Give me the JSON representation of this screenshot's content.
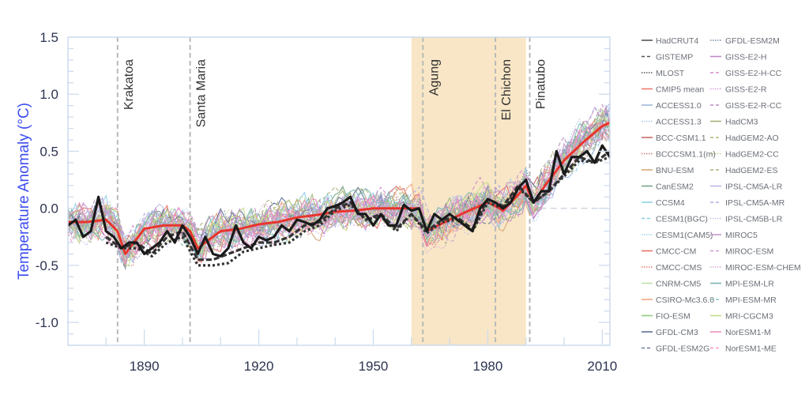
{
  "chart_data": {
    "type": "line",
    "title": "",
    "xlabel": "",
    "ylabel": "Temperature Anomaly (°C)",
    "xlim": [
      1870,
      2012
    ],
    "ylim": [
      -1.2,
      1.5
    ],
    "xticks": [
      1890,
      1920,
      1950,
      1980,
      2010
    ],
    "yticks": [
      -1.0,
      -0.5,
      0.0,
      0.5,
      1.0,
      1.5
    ],
    "ytick_labels": [
      "-1.0",
      "-0.5",
      "0.0",
      "0.5",
      "1.0",
      "1.5"
    ],
    "grid": false,
    "legend_placement": "right",
    "shaded_period": {
      "start": 1960,
      "end": 1990,
      "color": "#f8e6c6"
    },
    "events": [
      {
        "label": "Krakatoa",
        "year": 1883
      },
      {
        "label": "Santa Maria",
        "year": 1902
      },
      {
        "label": "Agung",
        "year": 1963
      },
      {
        "label": "El Chichon",
        "year": 1982
      },
      {
        "label": "Pinatubo",
        "year": 1991
      }
    ],
    "observations": [
      {
        "name": "HadCRUT4",
        "color": "#1a1a1a",
        "dash": "solid",
        "x": [
          1870,
          1872,
          1874,
          1876,
          1878,
          1880,
          1882,
          1884,
          1886,
          1888,
          1890,
          1892,
          1894,
          1896,
          1898,
          1900,
          1902,
          1904,
          1906,
          1908,
          1910,
          1912,
          1914,
          1916,
          1918,
          1920,
          1922,
          1924,
          1926,
          1928,
          1930,
          1932,
          1934,
          1936,
          1938,
          1940,
          1942,
          1944,
          1946,
          1948,
          1950,
          1952,
          1954,
          1956,
          1958,
          1960,
          1962,
          1964,
          1966,
          1968,
          1970,
          1972,
          1974,
          1976,
          1978,
          1980,
          1982,
          1984,
          1986,
          1988,
          1990,
          1992,
          1994,
          1996,
          1998,
          2000,
          2002,
          2004,
          2006,
          2008,
          2010,
          2012
        ],
        "y": [
          -0.15,
          -0.1,
          -0.25,
          -0.2,
          0.1,
          -0.2,
          -0.25,
          -0.35,
          -0.3,
          -0.3,
          -0.4,
          -0.35,
          -0.3,
          -0.2,
          -0.3,
          -0.15,
          -0.25,
          -0.4,
          -0.25,
          -0.4,
          -0.42,
          -0.35,
          -0.15,
          -0.3,
          -0.35,
          -0.25,
          -0.28,
          -0.25,
          -0.15,
          -0.2,
          -0.1,
          -0.12,
          -0.15,
          -0.1,
          0.0,
          0.02,
          0.05,
          0.1,
          -0.05,
          -0.05,
          -0.15,
          -0.05,
          -0.15,
          -0.15,
          0.03,
          -0.02,
          0.0,
          -0.2,
          -0.05,
          -0.1,
          -0.05,
          -0.1,
          -0.15,
          -0.2,
          0.0,
          0.08,
          0.05,
          0.0,
          0.05,
          0.18,
          0.25,
          0.05,
          0.15,
          0.15,
          0.5,
          0.3,
          0.45,
          0.45,
          0.5,
          0.4,
          0.55,
          0.45
        ]
      },
      {
        "name": "GISTEMP",
        "color": "#333333",
        "dash": "dashed",
        "x": [
          1880,
          1884,
          1888,
          1892,
          1896,
          1900,
          1904,
          1908,
          1912,
          1916,
          1920,
          1924,
          1928,
          1932,
          1936,
          1940,
          1944,
          1948,
          1952,
          1956,
          1960,
          1964,
          1968,
          1972,
          1976,
          1980,
          1984,
          1988,
          1992,
          1996,
          2000,
          2004,
          2008,
          2012
        ],
        "y": [
          -0.25,
          -0.35,
          -0.3,
          -0.4,
          -0.25,
          -0.2,
          -0.45,
          -0.45,
          -0.4,
          -0.35,
          -0.3,
          -0.3,
          -0.25,
          -0.15,
          -0.12,
          0.0,
          0.05,
          -0.1,
          -0.05,
          -0.18,
          -0.05,
          -0.2,
          -0.1,
          -0.08,
          -0.18,
          0.08,
          0.02,
          0.2,
          0.05,
          0.15,
          0.3,
          0.45,
          0.4,
          0.5
        ]
      },
      {
        "name": "MLOST",
        "color": "#333333",
        "dash": "dotted",
        "x": [
          1880,
          1884,
          1888,
          1892,
          1896,
          1900,
          1904,
          1908,
          1912,
          1916,
          1920,
          1924,
          1928,
          1932,
          1936,
          1940,
          1944,
          1948,
          1952,
          1956,
          1960,
          1964,
          1968,
          1972,
          1976,
          1980,
          1984,
          1988,
          1992,
          1996,
          2000,
          2004,
          2008,
          2012
        ],
        "y": [
          -0.3,
          -0.35,
          -0.35,
          -0.42,
          -0.3,
          -0.25,
          -0.5,
          -0.5,
          -0.48,
          -0.38,
          -0.35,
          -0.32,
          -0.3,
          -0.2,
          -0.15,
          -0.02,
          0.03,
          -0.1,
          -0.07,
          -0.2,
          -0.05,
          -0.22,
          -0.12,
          -0.1,
          -0.2,
          0.05,
          0.0,
          0.18,
          0.05,
          0.15,
          0.28,
          0.42,
          0.4,
          0.45
        ]
      },
      {
        "name": "CMIP5 mean",
        "color": "#e8352e",
        "dash": "solid",
        "x": [
          1870,
          1875,
          1880,
          1883,
          1885,
          1890,
          1895,
          1900,
          1902,
          1904,
          1910,
          1915,
          1920,
          1925,
          1930,
          1935,
          1940,
          1945,
          1950,
          1955,
          1960,
          1962,
          1964,
          1967,
          1970,
          1975,
          1980,
          1982,
          1984,
          1988,
          1990,
          1992,
          1995,
          2000,
          2005,
          2010,
          2012
        ],
        "y": [
          -0.12,
          -0.12,
          -0.1,
          -0.2,
          -0.4,
          -0.18,
          -0.15,
          -0.15,
          -0.2,
          -0.35,
          -0.2,
          -0.18,
          -0.14,
          -0.12,
          -0.08,
          -0.06,
          -0.03,
          -0.02,
          0.0,
          0.0,
          0.0,
          0.0,
          -0.2,
          -0.15,
          -0.1,
          -0.02,
          0.05,
          0.02,
          -0.02,
          0.12,
          0.2,
          0.05,
          0.2,
          0.42,
          0.58,
          0.72,
          0.75
        ]
      }
    ],
    "legend": [
      {
        "name": "HadCRUT4",
        "color": "#555555",
        "dash": "solid"
      },
      {
        "name": "GISTEMP",
        "color": "#555555",
        "dash": "dashed"
      },
      {
        "name": "MLOST",
        "color": "#555555",
        "dash": "dotted"
      },
      {
        "name": "CMIP5 mean",
        "color": "#f07a72",
        "dash": "solid"
      },
      {
        "name": "ACCESS1.0",
        "color": "#9fb8dc",
        "dash": "solid"
      },
      {
        "name": "ACCESS1.3",
        "color": "#a9c4e6",
        "dash": "dotted"
      },
      {
        "name": "BCC-CSM1.1",
        "color": "#c96a6a",
        "dash": "solid"
      },
      {
        "name": "BCCCSM1.1(m)",
        "color": "#d27a7a",
        "dash": "dotted"
      },
      {
        "name": "BNU-ESM",
        "color": "#d9a878",
        "dash": "solid"
      },
      {
        "name": "CanESM2",
        "color": "#7ba48a",
        "dash": "solid"
      },
      {
        "name": "CCSM4",
        "color": "#8fd0e6",
        "dash": "solid"
      },
      {
        "name": "CESM1(BGC)",
        "color": "#8ccde3",
        "dash": "dashed"
      },
      {
        "name": "CESM1(CAM5)",
        "color": "#9ad6ea",
        "dash": "dotted"
      },
      {
        "name": "CMCC-CM",
        "color": "#ee6f66",
        "dash": "solid"
      },
      {
        "name": "CMCC-CMS",
        "color": "#ee7c73",
        "dash": "dotted"
      },
      {
        "name": "CNRM-CM5",
        "color": "#bfe3a8",
        "dash": "solid"
      },
      {
        "name": "CSIRO-Mc3.6.0",
        "color": "#f3a77e",
        "dash": "solid"
      },
      {
        "name": "FIO-ESM",
        "color": "#8fcb80",
        "dash": "solid"
      },
      {
        "name": "GFDL-CM3",
        "color": "#5f6f94",
        "dash": "solid"
      },
      {
        "name": "GFDL-ESM2G",
        "color": "#6a7a9c",
        "dash": "dashed"
      },
      {
        "name": "GFDL-ESM2M",
        "color": "#7688ac",
        "dash": "dotted"
      },
      {
        "name": "GISS-E2-H",
        "color": "#c08ac8",
        "dash": "solid"
      },
      {
        "name": "GISS-E2-H-CC",
        "color": "#cf8ccd",
        "dash": "dashed"
      },
      {
        "name": "GISS-E2-R",
        "color": "#d499d6",
        "dash": "dotted"
      },
      {
        "name": "GISS-E2-R-CC",
        "color": "#b98cc0",
        "dash": "dashed"
      },
      {
        "name": "HadCM3",
        "color": "#a5b57a",
        "dash": "solid"
      },
      {
        "name": "HadGEM2-AO",
        "color": "#a9bc74",
        "dash": "dashed"
      },
      {
        "name": "HadGEM2-CC",
        "color": "#c2d48a",
        "dash": "dotted"
      },
      {
        "name": "HadGEM2-ES",
        "color": "#aab37e",
        "dash": "dashed"
      },
      {
        "name": "IPSL-CM5A-LR",
        "color": "#bdb8e6",
        "dash": "solid"
      },
      {
        "name": "IPSL-CM5A-MR",
        "color": "#b3aee0",
        "dash": "dashed"
      },
      {
        "name": "IPSL-CM5B-LR",
        "color": "#c5c0ea",
        "dash": "dotted"
      },
      {
        "name": "MIROC5",
        "color": "#c797cc",
        "dash": "solid"
      },
      {
        "name": "MIROC-ESM",
        "color": "#cf9ad3",
        "dash": "dashed"
      },
      {
        "name": "MIROC-ESM-CHEM",
        "color": "#d6a8d9",
        "dash": "dotted"
      },
      {
        "name": "MPI-ESM-LR",
        "color": "#7fb5b5",
        "dash": "solid"
      },
      {
        "name": "MPI-ESM-MR",
        "color": "#8cc2bd",
        "dash": "dashed"
      },
      {
        "name": "MRI-CGCM3",
        "color": "#c6dc8c",
        "dash": "solid"
      },
      {
        "name": "NorESM1-M",
        "color": "#ec8fc0",
        "dash": "solid"
      },
      {
        "name": "NorESM1-ME",
        "color": "#f09ac4",
        "dash": "dashed"
      }
    ],
    "colors": {
      "axis": "#cddcee",
      "tick_text": "#2b3350",
      "ylabel": "#3d4ef0",
      "event_line": "#b9b9b9"
    }
  }
}
